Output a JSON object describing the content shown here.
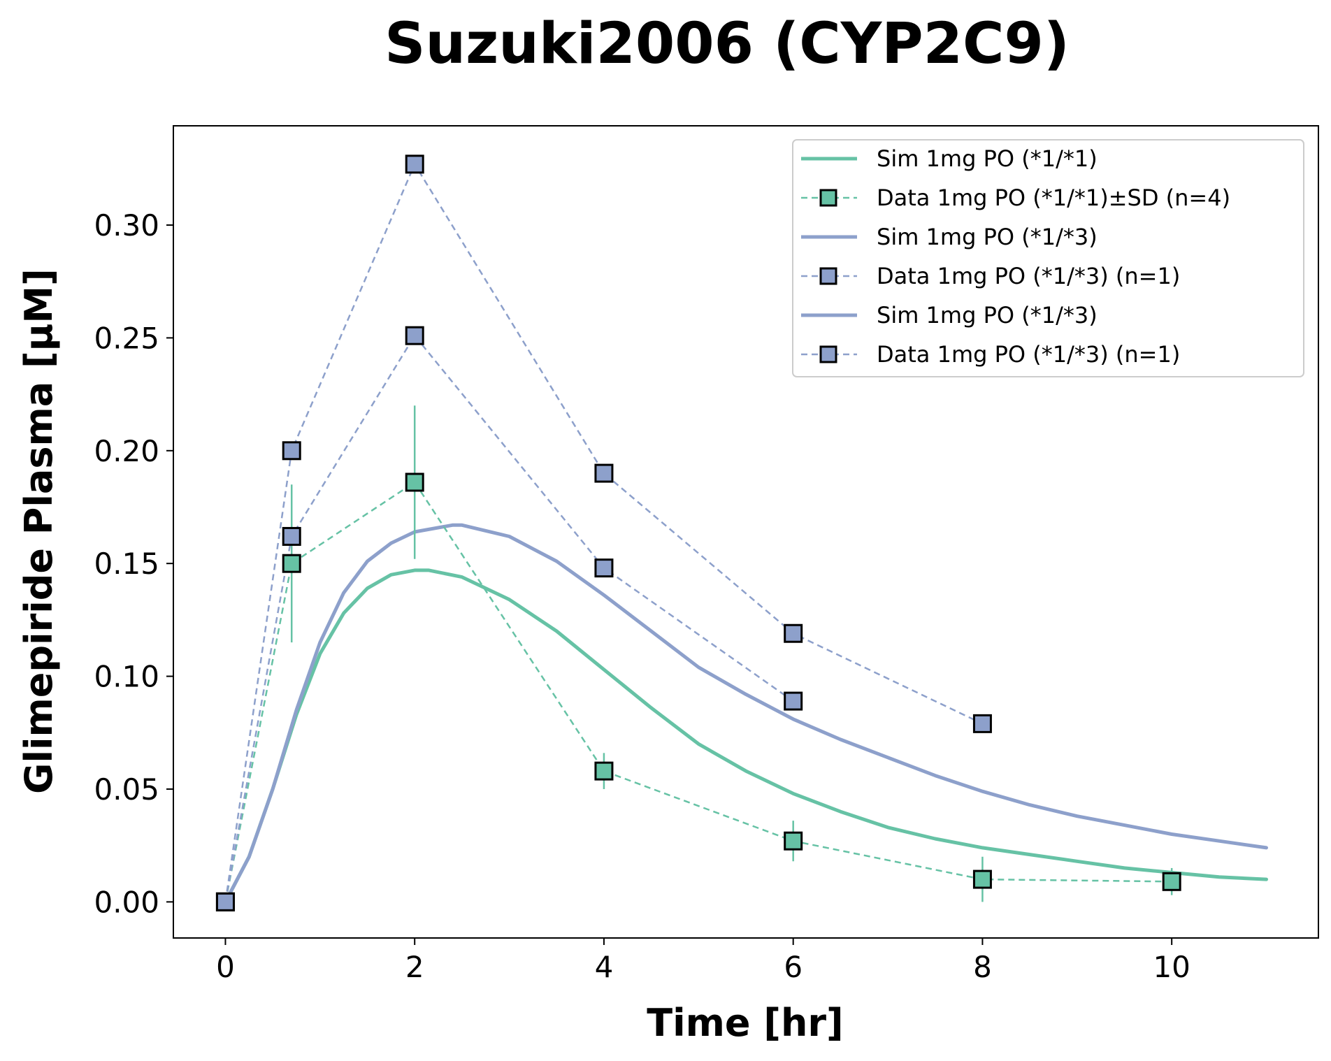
{
  "chart_data": {
    "type": "line",
    "title": "Suzuki2006 (CYP2C9)",
    "xlabel": "Time [hr]",
    "ylabel": "Glimepiride Plasma [µM]",
    "xlim": [
      -0.55,
      11.55
    ],
    "ylim": [
      -0.016,
      0.344
    ],
    "xticks": [
      0,
      2,
      4,
      6,
      8,
      10
    ],
    "xtick_labels": [
      "0",
      "2",
      "4",
      "6",
      "8",
      "10"
    ],
    "yticks": [
      0.0,
      0.05,
      0.1,
      0.15,
      0.2,
      0.25,
      0.3
    ],
    "ytick_labels": [
      "0.00",
      "0.05",
      "0.10",
      "0.15",
      "0.20",
      "0.25",
      "0.30"
    ],
    "grid": false,
    "legend_position": "top-right",
    "legend": [
      {
        "label": "Sim 1mg PO (*1/*1)",
        "kind": "line",
        "color": "#66c2a5"
      },
      {
        "label": "Data 1mg PO (*1/*1)±SD (n=4)",
        "kind": "marker",
        "color": "#66c2a5"
      },
      {
        "label": "Sim 1mg PO (*1/*3)",
        "kind": "line",
        "color": "#8da0cb"
      },
      {
        "label": "Data 1mg PO (*1/*3) (n=1)",
        "kind": "marker",
        "color": "#8da0cb"
      },
      {
        "label": "Sim 1mg PO (*1/*3)",
        "kind": "line",
        "color": "#8da0cb"
      },
      {
        "label": "Data 1mg PO (*1/*3) (n=1)",
        "kind": "marker",
        "color": "#8da0cb"
      }
    ],
    "sim_series": [
      {
        "color": "#66c2a5",
        "x": [
          0,
          0.25,
          0.5,
          0.75,
          1.0,
          1.25,
          1.5,
          1.75,
          2.0,
          2.15,
          2.5,
          3.0,
          3.5,
          4.0,
          4.5,
          5.0,
          5.5,
          6.0,
          6.5,
          7.0,
          7.5,
          8.0,
          8.5,
          9.0,
          9.5,
          10.0,
          10.5,
          11.0
        ],
        "y": [
          0.0,
          0.02,
          0.05,
          0.083,
          0.11,
          0.128,
          0.139,
          0.145,
          0.147,
          0.147,
          0.144,
          0.134,
          0.12,
          0.103,
          0.086,
          0.07,
          0.058,
          0.048,
          0.04,
          0.033,
          0.028,
          0.024,
          0.021,
          0.018,
          0.015,
          0.013,
          0.011,
          0.01
        ]
      },
      {
        "color": "#8da0cb",
        "x": [
          0,
          0.25,
          0.5,
          0.75,
          1.0,
          1.25,
          1.5,
          1.75,
          2.0,
          2.4,
          2.5,
          3.0,
          3.5,
          4.0,
          4.5,
          5.0,
          5.5,
          6.0,
          6.5,
          7.0,
          7.5,
          8.0,
          8.5,
          9.0,
          9.5,
          10.0,
          10.5,
          11.0
        ],
        "y": [
          0.0,
          0.02,
          0.05,
          0.085,
          0.115,
          0.137,
          0.151,
          0.159,
          0.164,
          0.167,
          0.167,
          0.162,
          0.151,
          0.136,
          0.12,
          0.104,
          0.092,
          0.081,
          0.072,
          0.064,
          0.056,
          0.049,
          0.043,
          0.038,
          0.034,
          0.03,
          0.027,
          0.024
        ]
      }
    ],
    "data_series": [
      {
        "color": "#66c2a5",
        "x": [
          0,
          0.7,
          2,
          4,
          6,
          8,
          10
        ],
        "y": [
          0.0,
          0.15,
          0.186,
          0.058,
          0.027,
          0.01,
          0.009
        ],
        "sd": [
          0.0,
          0.035,
          0.034,
          0.008,
          0.009,
          0.01,
          0.006
        ]
      },
      {
        "color": "#8da0cb",
        "x": [
          0,
          0.7,
          2,
          4,
          6,
          8
        ],
        "y": [
          0.0,
          0.2,
          0.327,
          0.19,
          0.119,
          0.079
        ]
      },
      {
        "color": "#8da0cb",
        "x": [
          0,
          0.7,
          2,
          4,
          6
        ],
        "y": [
          0.0,
          0.162,
          0.251,
          0.148,
          0.089
        ]
      }
    ]
  }
}
